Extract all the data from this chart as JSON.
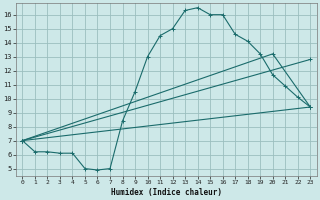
{
  "xlabel": "Humidex (Indice chaleur)",
  "bg_color": "#cde8e8",
  "grid_color": "#9bbfbf",
  "line_color": "#1a6b6b",
  "xlim": [
    -0.5,
    23.5
  ],
  "ylim": [
    4.5,
    16.8
  ],
  "yticks": [
    5,
    6,
    7,
    8,
    9,
    10,
    11,
    12,
    13,
    14,
    15,
    16
  ],
  "xticks": [
    0,
    1,
    2,
    3,
    4,
    5,
    6,
    7,
    8,
    9,
    10,
    11,
    12,
    13,
    14,
    15,
    16,
    17,
    18,
    19,
    20,
    21,
    22,
    23
  ],
  "line1_x": [
    0,
    1,
    2,
    3,
    4,
    5,
    6,
    7,
    8,
    9,
    10,
    11,
    12,
    13,
    14,
    15,
    16,
    17,
    18,
    19,
    20,
    21,
    22,
    23
  ],
  "line1_y": [
    7.0,
    6.2,
    6.2,
    6.1,
    6.1,
    5.0,
    4.9,
    5.0,
    8.4,
    10.5,
    13.0,
    14.5,
    15.0,
    16.3,
    16.5,
    16.0,
    16.0,
    14.6,
    14.1,
    13.2,
    11.7,
    10.9,
    10.1,
    9.4
  ],
  "line2_x": [
    0,
    23
  ],
  "line2_y": [
    7.0,
    9.4
  ],
  "line3_x": [
    0,
    23
  ],
  "line3_y": [
    7.0,
    12.8
  ],
  "line4_x": [
    0,
    20,
    23
  ],
  "line4_y": [
    7.0,
    13.2,
    9.4
  ],
  "ylabel_ticks": [
    "5",
    "6",
    "7",
    "8",
    "9",
    "10",
    "11",
    "12",
    "13",
    "14",
    "15",
    "16"
  ],
  "xlabel_ticks": [
    "0",
    "1",
    "2",
    "3",
    "4",
    "5",
    "6",
    "7",
    "8",
    "9",
    "10",
    "11",
    "12",
    "13",
    "14",
    "15",
    "16",
    "17",
    "18",
    "19",
    "20",
    "21",
    "22",
    "23"
  ]
}
